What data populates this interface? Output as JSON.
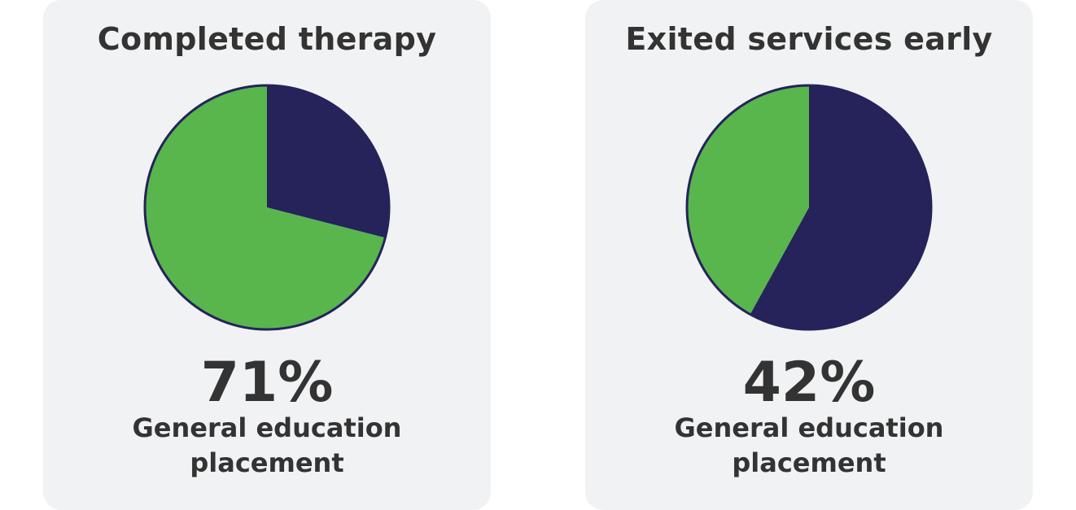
{
  "colors": {
    "green": "#58b64d",
    "navy": "#25235a",
    "text": "#333333",
    "card": "#f1f2f4"
  },
  "chart_data": [
    {
      "type": "pie",
      "title": "Completed therapy",
      "slices": [
        {
          "value": 71,
          "color": "#58b64d"
        },
        {
          "value": 29,
          "color": "#25235a"
        }
      ],
      "highlight_label": "71%",
      "caption_lines": [
        "General education",
        "placement"
      ]
    },
    {
      "type": "pie",
      "title": "Exited services early",
      "slices": [
        {
          "value": 42,
          "color": "#58b64d"
        },
        {
          "value": 58,
          "color": "#25235a"
        }
      ],
      "highlight_label": "42%",
      "caption_lines": [
        "General education",
        "placement"
      ]
    }
  ]
}
